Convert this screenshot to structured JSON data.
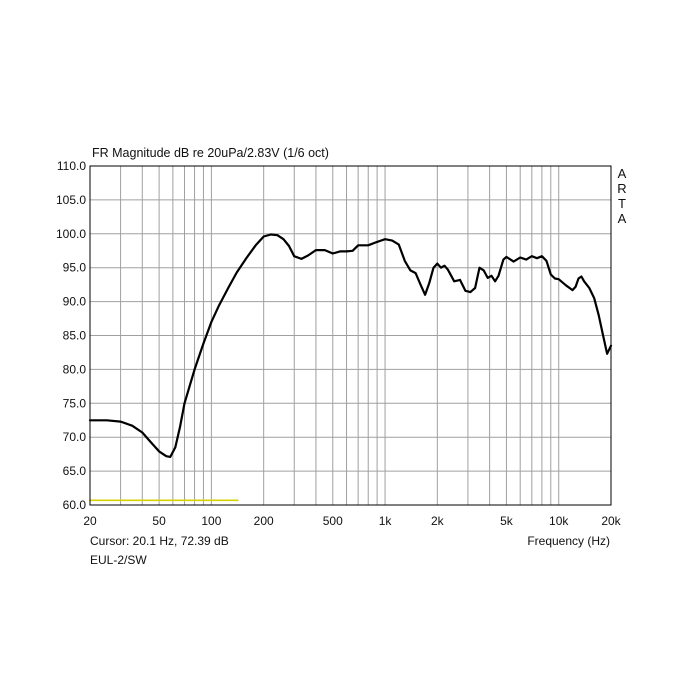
{
  "chart_data": {
    "type": "line",
    "title": "FR Magnitude dB re 20uPa/2.83V (1/6 oct)",
    "xlabel": "Frequency (Hz)",
    "ylabel": "",
    "x_scale": "log",
    "xlim": [
      20,
      20000
    ],
    "ylim": [
      60,
      110
    ],
    "grid": true,
    "y_ticks": [
      60,
      65,
      70,
      75,
      80,
      85,
      90,
      95,
      100,
      105,
      110
    ],
    "y_tick_labels": [
      "60.0",
      "65.0",
      "70.0",
      "75.0",
      "80.0",
      "85.0",
      "90.0",
      "95.0",
      "100.0",
      "105.0",
      "110.0"
    ],
    "x_ticks": [
      20,
      50,
      100,
      200,
      500,
      1000,
      2000,
      5000,
      10000,
      20000
    ],
    "x_tick_labels": [
      "20",
      "50",
      "100",
      "200",
      "500",
      "1k",
      "2k",
      "5k",
      "10k",
      "20k"
    ],
    "series": [
      {
        "color": "#000000",
        "x": [
          20,
          25,
          30,
          35,
          40,
          45,
          50,
          55,
          58,
          62,
          66,
          70,
          80,
          90,
          100,
          110,
          125,
          140,
          160,
          180,
          200,
          220,
          240,
          260,
          280,
          300,
          330,
          360,
          400,
          450,
          500,
          550,
          600,
          650,
          700,
          800,
          900,
          1000,
          1100,
          1200,
          1300,
          1400,
          1500,
          1600,
          1700,
          1800,
          1900,
          2000,
          2100,
          2200,
          2300,
          2500,
          2700,
          2900,
          3100,
          3300,
          3500,
          3700,
          3900,
          4100,
          4300,
          4500,
          4800,
          5000,
          5500,
          6000,
          6500,
          7000,
          7500,
          8000,
          8500,
          9000,
          9500,
          10000,
          11000,
          12000,
          12500,
          13000,
          13500,
          14000,
          15000,
          16000,
          17000,
          18000,
          19000,
          20000
        ],
        "y": [
          72.5,
          72.5,
          72.3,
          71.7,
          70.7,
          69.2,
          67.9,
          67.2,
          67.1,
          68.5,
          71.5,
          75.0,
          80.0,
          83.8,
          87.0,
          89.3,
          92.0,
          94.3,
          96.5,
          98.3,
          99.6,
          99.9,
          99.8,
          99.2,
          98.2,
          96.7,
          96.3,
          96.8,
          97.6,
          97.6,
          97.1,
          97.4,
          97.4,
          97.5,
          98.3,
          98.3,
          98.8,
          99.2,
          99.0,
          98.4,
          96.0,
          94.6,
          94.2,
          92.5,
          91.0,
          92.8,
          95.0,
          95.6,
          95.0,
          95.3,
          94.7,
          93.0,
          93.2,
          91.6,
          91.4,
          92.0,
          95.0,
          94.6,
          93.5,
          93.8,
          93.0,
          93.8,
          96.2,
          96.6,
          95.9,
          96.5,
          96.2,
          96.7,
          96.4,
          96.7,
          96.0,
          94.0,
          93.4,
          93.3,
          92.4,
          91.7,
          92.2,
          93.4,
          93.7,
          93.0,
          92.0,
          90.5,
          88.0,
          85.0,
          82.3,
          83.5
        ]
      },
      {
        "color": "#d4d100",
        "x": [
          20,
          142
        ],
        "y": [
          60.7,
          60.7
        ]
      }
    ]
  },
  "labels": {
    "cursor": "Cursor: 20.1 Hz, 72.39 dB",
    "model": "EUL-2/SW",
    "brand": "ARTA"
  }
}
